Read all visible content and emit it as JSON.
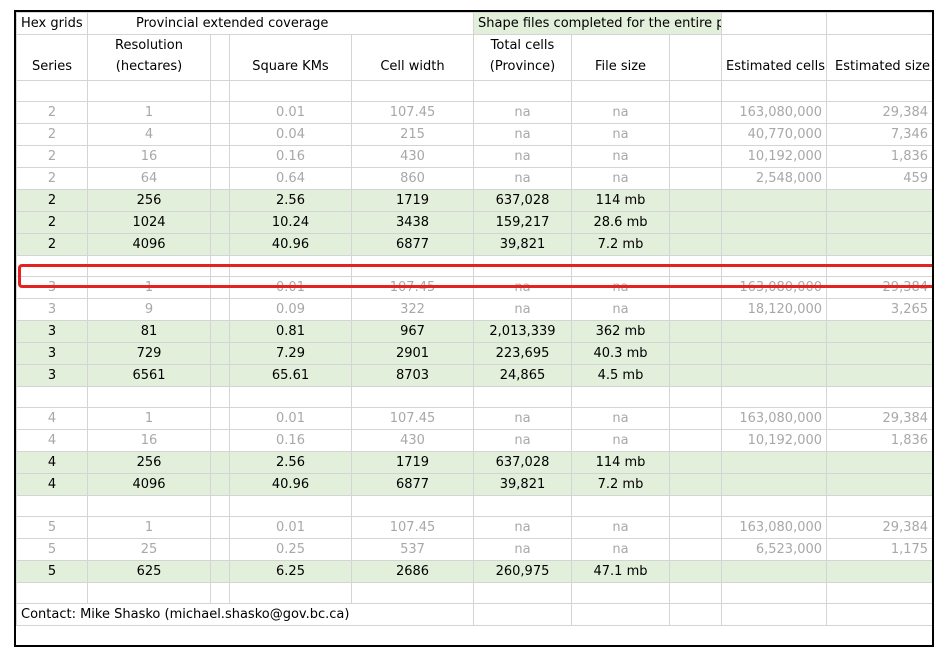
{
  "colors": {
    "highlight_bg": "#e2efda",
    "selection_outline": "#e32222"
  },
  "title_row": {
    "hex_grids": "Hex grids",
    "provincial": "Provincial extended coverage",
    "shape_files": "Shape files completed for the entire province"
  },
  "headers": {
    "series": "Series",
    "resolution_1": "Resolution",
    "resolution_2": "(hectares)",
    "square_kms": "Square KMs",
    "cell_width": "Cell width",
    "total_cells_1": "Total cells",
    "total_cells_2": "(Province)",
    "file_size": "File size",
    "estimated_cells": "Estimated cells",
    "estimated_size": "Estimated size"
  },
  "rows": [
    {
      "series": "2",
      "res": "1",
      "sqkm": "0.01",
      "width": "107.45",
      "cells": "na",
      "size": "na",
      "est_cells": "163,080,000",
      "est_size": "29,384"
    },
    {
      "series": "2",
      "res": "4",
      "sqkm": "0.04",
      "width": "215",
      "cells": "na",
      "size": "na",
      "est_cells": "40,770,000",
      "est_size": "7,346"
    },
    {
      "series": "2",
      "res": "16",
      "sqkm": "0.16",
      "width": "430",
      "cells": "na",
      "size": "na",
      "est_cells": "10,192,000",
      "est_size": "1,836"
    },
    {
      "series": "2",
      "res": "64",
      "sqkm": "0.64",
      "width": "860",
      "cells": "na",
      "size": "na",
      "est_cells": "2,548,000",
      "est_size": "459"
    },
    {
      "series": "2",
      "res": "256",
      "sqkm": "2.56",
      "width": "1719",
      "cells": "637,028",
      "size": "114 mb",
      "est_cells": "",
      "est_size": ""
    },
    {
      "series": "2",
      "res": "1024",
      "sqkm": "10.24",
      "width": "3438",
      "cells": "159,217",
      "size": "28.6 mb",
      "est_cells": "",
      "est_size": ""
    },
    {
      "series": "2",
      "res": "4096",
      "sqkm": "40.96",
      "width": "6877",
      "cells": "39,821",
      "size": "7.2 mb",
      "est_cells": "",
      "est_size": ""
    },
    {
      "series": "3",
      "res": "1",
      "sqkm": "0.01",
      "width": "107.45",
      "cells": "na",
      "size": "na",
      "est_cells": "163,080,000",
      "est_size": "29,384"
    },
    {
      "series": "3",
      "res": "9",
      "sqkm": "0.09",
      "width": "322",
      "cells": "na",
      "size": "na",
      "est_cells": "18,120,000",
      "est_size": "3,265"
    },
    {
      "series": "3",
      "res": "81",
      "sqkm": "0.81",
      "width": "967",
      "cells": "2,013,339",
      "size": "362 mb",
      "est_cells": "",
      "est_size": ""
    },
    {
      "series": "3",
      "res": "729",
      "sqkm": "7.29",
      "width": "2901",
      "cells": "223,695",
      "size": "40.3 mb",
      "est_cells": "",
      "est_size": ""
    },
    {
      "series": "3",
      "res": "6561",
      "sqkm": "65.61",
      "width": "8703",
      "cells": "24,865",
      "size": "4.5 mb",
      "est_cells": "",
      "est_size": ""
    },
    {
      "series": "4",
      "res": "1",
      "sqkm": "0.01",
      "width": "107.45",
      "cells": "na",
      "size": "na",
      "est_cells": "163,080,000",
      "est_size": "29,384"
    },
    {
      "series": "4",
      "res": "16",
      "sqkm": "0.16",
      "width": "430",
      "cells": "na",
      "size": "na",
      "est_cells": "10,192,000",
      "est_size": "1,836"
    },
    {
      "series": "4",
      "res": "256",
      "sqkm": "2.56",
      "width": "1719",
      "cells": "637,028",
      "size": "114 mb",
      "est_cells": "",
      "est_size": ""
    },
    {
      "series": "4",
      "res": "4096",
      "sqkm": "40.96",
      "width": "6877",
      "cells": "39,821",
      "size": "7.2 mb",
      "est_cells": "",
      "est_size": ""
    },
    {
      "series": "5",
      "res": "1",
      "sqkm": "0.01",
      "width": "107.45",
      "cells": "na",
      "size": "na",
      "est_cells": "163,080,000",
      "est_size": "29,384"
    },
    {
      "series": "5",
      "res": "25",
      "sqkm": "0.25",
      "width": "537",
      "cells": "na",
      "size": "na",
      "est_cells": "6,523,000",
      "est_size": "1,175"
    },
    {
      "series": "5",
      "res": "625",
      "sqkm": "6.25",
      "width": "2686",
      "cells": "260,975",
      "size": "47.1 mb",
      "est_cells": "",
      "est_size": ""
    }
  ],
  "contact": "Contact: Mike Shasko  (michael.shasko@gov.bc.ca)"
}
